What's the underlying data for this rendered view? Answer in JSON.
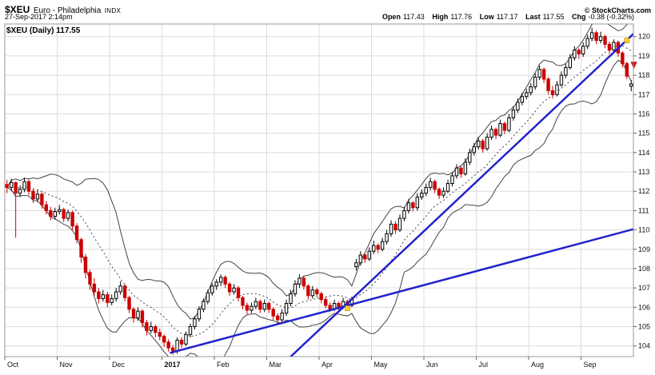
{
  "header": {
    "symbol": "$XEU",
    "name": "Euro - Philadelphia",
    "exchange": "INDX",
    "datetime": "27-Sep-2017 2:14pm",
    "copyright": "© StockCharts.com",
    "quote": {
      "open_label": "Open",
      "open_value": "117.43",
      "high_label": "High",
      "high_value": "117.76",
      "low_label": "Low",
      "low_value": "117.17",
      "last_label": "Last",
      "last_value": "117.55",
      "chg_label": "Chg",
      "chg_value": "-0.38 (-0.32%)"
    }
  },
  "legend_label": "$XEU (Daily) 117.55",
  "chart_data": {
    "type": "candlestick",
    "title": "$XEU (Daily)",
    "last_price": 117.55,
    "ylim": [
      103.45,
      120.65
    ],
    "yticks": [
      104,
      105,
      106,
      107,
      108,
      109,
      110,
      111,
      112,
      113,
      114,
      115,
      116,
      117,
      118,
      119,
      120
    ],
    "months": [
      {
        "label": "Oct",
        "index": 0
      },
      {
        "label": "Nov",
        "index": 12
      },
      {
        "label": "Dec",
        "index": 24
      },
      {
        "label": "2017",
        "index": 36,
        "bold": true
      },
      {
        "label": "Feb",
        "index": 48
      },
      {
        "label": "Mar",
        "index": 60
      },
      {
        "label": "Apr",
        "index": 72
      },
      {
        "label": "May",
        "index": 84
      },
      {
        "label": "Jun",
        "index": 96
      },
      {
        "label": "Jul",
        "index": 108
      },
      {
        "label": "Aug",
        "index": 120
      },
      {
        "label": "Sep",
        "index": 132
      }
    ],
    "bollinger": {
      "period": 12,
      "stdev": 2
    },
    "candles": [
      [
        112.35,
        112.6,
        111.9,
        112.2
      ],
      [
        112.2,
        112.65,
        112.0,
        112.45
      ],
      [
        112.45,
        112.5,
        109.6,
        111.9
      ],
      [
        111.9,
        112.3,
        111.7,
        112.1
      ],
      [
        112.1,
        112.7,
        111.95,
        112.5
      ],
      [
        112.5,
        112.6,
        111.8,
        112.0
      ],
      [
        112.0,
        112.15,
        111.4,
        111.6
      ],
      [
        111.6,
        112.05,
        111.45,
        111.85
      ],
      [
        111.85,
        111.95,
        111.1,
        111.3
      ],
      [
        111.3,
        111.5,
        110.8,
        111.0
      ],
      [
        111.0,
        111.2,
        110.5,
        110.7
      ],
      [
        110.7,
        111.15,
        110.55,
        110.95
      ],
      [
        110.95,
        111.3,
        110.8,
        111.05
      ],
      [
        111.05,
        111.15,
        110.4,
        110.6
      ],
      [
        110.6,
        111.05,
        110.45,
        110.9
      ],
      [
        110.9,
        111.0,
        110.0,
        110.2
      ],
      [
        110.2,
        110.35,
        109.3,
        109.5
      ],
      [
        109.5,
        109.6,
        108.3,
        108.6
      ],
      [
        108.6,
        108.75,
        107.5,
        107.8
      ],
      [
        107.8,
        107.95,
        106.9,
        107.2
      ],
      [
        107.2,
        107.5,
        106.6,
        106.8
      ],
      [
        106.8,
        107.0,
        106.2,
        106.45
      ],
      [
        106.45,
        106.9,
        106.3,
        106.65
      ],
      [
        106.65,
        106.8,
        106.0,
        106.25
      ],
      [
        106.25,
        106.65,
        106.1,
        106.45
      ],
      [
        106.45,
        107.0,
        106.3,
        106.8
      ],
      [
        106.8,
        107.35,
        106.65,
        107.1
      ],
      [
        107.1,
        107.2,
        106.3,
        106.5
      ],
      [
        106.5,
        106.6,
        105.7,
        105.9
      ],
      [
        105.9,
        106.0,
        105.2,
        105.45
      ],
      [
        105.45,
        106.0,
        105.3,
        105.8
      ],
      [
        105.8,
        105.9,
        104.95,
        105.2
      ],
      [
        105.2,
        105.35,
        104.55,
        104.8
      ],
      [
        104.8,
        105.25,
        104.65,
        105.0
      ],
      [
        105.0,
        105.1,
        104.45,
        104.7
      ],
      [
        104.7,
        104.9,
        104.3,
        104.5
      ],
      [
        104.5,
        104.6,
        103.95,
        104.2
      ],
      [
        104.2,
        104.35,
        103.7,
        103.9
      ],
      [
        103.9,
        104.05,
        103.55,
        103.75
      ],
      [
        103.75,
        104.45,
        103.6,
        104.3
      ],
      [
        104.3,
        104.45,
        103.9,
        104.1
      ],
      [
        104.1,
        104.75,
        104.0,
        104.6
      ],
      [
        104.6,
        105.15,
        104.45,
        105.0
      ],
      [
        105.0,
        105.55,
        104.85,
        105.4
      ],
      [
        105.4,
        106.05,
        105.25,
        105.9
      ],
      [
        105.9,
        106.45,
        105.75,
        106.3
      ],
      [
        106.3,
        106.9,
        106.15,
        106.75
      ],
      [
        106.75,
        107.25,
        106.6,
        107.1
      ],
      [
        107.1,
        107.45,
        106.9,
        107.3
      ],
      [
        107.3,
        107.7,
        107.1,
        107.55
      ],
      [
        107.55,
        107.65,
        107.0,
        107.2
      ],
      [
        107.2,
        107.3,
        106.6,
        106.8
      ],
      [
        106.8,
        107.2,
        106.65,
        107.0
      ],
      [
        107.0,
        107.1,
        106.3,
        106.5
      ],
      [
        106.5,
        106.6,
        105.9,
        106.1
      ],
      [
        106.1,
        106.25,
        105.65,
        105.85
      ],
      [
        105.85,
        106.25,
        105.7,
        106.05
      ],
      [
        106.05,
        106.5,
        105.9,
        106.3
      ],
      [
        106.3,
        106.4,
        105.7,
        105.9
      ],
      [
        105.9,
        106.4,
        105.75,
        106.2
      ],
      [
        106.2,
        106.3,
        105.7,
        105.9
      ],
      [
        105.9,
        106.0,
        105.35,
        105.55
      ],
      [
        105.55,
        105.7,
        105.15,
        105.35
      ],
      [
        105.35,
        105.9,
        105.2,
        105.7
      ],
      [
        105.7,
        106.4,
        105.55,
        106.2
      ],
      [
        106.2,
        106.9,
        106.05,
        106.7
      ],
      [
        106.7,
        107.4,
        106.55,
        107.2
      ],
      [
        107.2,
        107.7,
        107.0,
        107.5
      ],
      [
        107.5,
        107.6,
        106.9,
        107.1
      ],
      [
        107.1,
        107.2,
        106.4,
        106.6
      ],
      [
        106.6,
        107.1,
        106.45,
        106.9
      ],
      [
        106.9,
        107.0,
        106.5,
        106.7
      ],
      [
        106.7,
        106.8,
        106.2,
        106.4
      ],
      [
        106.4,
        106.55,
        105.95,
        106.1
      ],
      [
        106.1,
        106.25,
        105.75,
        105.9
      ],
      [
        105.9,
        106.4,
        105.8,
        106.2
      ],
      [
        106.2,
        106.3,
        105.85,
        106.0
      ],
      [
        106.0,
        106.5,
        105.9,
        106.3
      ],
      [
        106.3,
        106.4,
        105.95,
        106.1
      ],
      [
        106.1,
        106.55,
        106.0,
        106.4
      ],
      [
        108.1,
        108.5,
        107.9,
        108.3
      ],
      [
        108.3,
        108.9,
        108.15,
        108.7
      ],
      [
        108.7,
        108.8,
        108.3,
        108.5
      ],
      [
        108.5,
        109.1,
        108.4,
        108.9
      ],
      [
        108.9,
        109.45,
        108.75,
        109.2
      ],
      [
        109.2,
        109.3,
        108.8,
        109.0
      ],
      [
        109.0,
        109.6,
        108.9,
        109.4
      ],
      [
        109.4,
        110.0,
        109.25,
        109.8
      ],
      [
        109.8,
        110.5,
        109.65,
        110.3
      ],
      [
        110.3,
        110.45,
        109.8,
        110.0
      ],
      [
        110.0,
        110.8,
        109.9,
        110.6
      ],
      [
        110.6,
        111.2,
        110.45,
        111.0
      ],
      [
        111.0,
        111.6,
        110.85,
        111.4
      ],
      [
        111.4,
        111.5,
        110.95,
        111.15
      ],
      [
        111.15,
        111.9,
        111.0,
        111.7
      ],
      [
        111.7,
        112.1,
        111.55,
        111.9
      ],
      [
        111.9,
        112.4,
        111.75,
        112.2
      ],
      [
        112.2,
        112.7,
        112.05,
        112.5
      ],
      [
        112.5,
        112.6,
        111.9,
        112.1
      ],
      [
        112.1,
        112.2,
        111.6,
        111.8
      ],
      [
        111.8,
        112.2,
        111.65,
        112.0
      ],
      [
        112.0,
        112.6,
        111.9,
        112.4
      ],
      [
        112.4,
        113.0,
        112.25,
        112.8
      ],
      [
        112.8,
        113.4,
        112.65,
        113.2
      ],
      [
        113.2,
        113.3,
        112.7,
        112.9
      ],
      [
        112.9,
        113.7,
        112.8,
        113.5
      ],
      [
        113.5,
        114.2,
        113.35,
        114.0
      ],
      [
        114.0,
        114.5,
        113.85,
        114.3
      ],
      [
        114.3,
        114.8,
        114.15,
        114.6
      ],
      [
        114.6,
        114.7,
        114.0,
        114.2
      ],
      [
        114.2,
        115.0,
        114.1,
        114.8
      ],
      [
        114.8,
        115.4,
        114.65,
        115.2
      ],
      [
        115.2,
        115.3,
        114.7,
        114.9
      ],
      [
        114.9,
        115.7,
        114.8,
        115.5
      ],
      [
        115.5,
        115.6,
        114.95,
        115.15
      ],
      [
        115.15,
        116.0,
        115.05,
        115.8
      ],
      [
        115.8,
        116.4,
        115.65,
        116.2
      ],
      [
        116.2,
        116.8,
        116.05,
        116.6
      ],
      [
        116.6,
        117.1,
        116.45,
        116.9
      ],
      [
        116.9,
        117.3,
        116.75,
        117.1
      ],
      [
        117.1,
        117.6,
        116.95,
        117.4
      ],
      [
        117.4,
        118.1,
        117.25,
        117.9
      ],
      [
        117.9,
        118.5,
        117.75,
        118.3
      ],
      [
        118.3,
        118.4,
        117.6,
        117.8
      ],
      [
        117.8,
        117.9,
        117.0,
        117.2
      ],
      [
        117.2,
        117.45,
        116.8,
        117.0
      ],
      [
        117.0,
        117.7,
        116.9,
        117.5
      ],
      [
        117.5,
        118.2,
        117.4,
        118.0
      ],
      [
        118.0,
        118.6,
        117.85,
        118.4
      ],
      [
        118.4,
        119.1,
        118.3,
        118.9
      ],
      [
        118.9,
        119.5,
        118.75,
        119.3
      ],
      [
        119.3,
        119.4,
        118.85,
        119.1
      ],
      [
        119.1,
        119.7,
        118.95,
        119.5
      ],
      [
        119.5,
        120.1,
        119.35,
        119.9
      ],
      [
        119.9,
        120.45,
        119.75,
        120.2
      ],
      [
        120.2,
        120.3,
        119.6,
        119.8
      ],
      [
        119.8,
        120.25,
        119.65,
        120.0
      ],
      [
        120.0,
        120.1,
        119.4,
        119.6
      ],
      [
        119.6,
        119.75,
        119.1,
        119.3
      ],
      [
        119.3,
        119.85,
        119.2,
        119.7
      ],
      [
        119.7,
        119.8,
        118.95,
        119.15
      ],
      [
        119.15,
        119.25,
        118.4,
        118.6
      ],
      [
        118.6,
        118.7,
        117.8,
        117.95
      ],
      [
        117.43,
        117.76,
        117.17,
        117.55
      ]
    ],
    "trendlines": [
      {
        "from": [
          37.5,
          103.65
        ],
        "to": [
          144.5,
          110.1
        ],
        "color": "#2222cc",
        "width": 2.5
      },
      {
        "from": [
          65.0,
          103.45
        ],
        "to": [
          144.5,
          120.35
        ],
        "color": "#2222cc",
        "width": 2.5
      }
    ],
    "annotations": [
      {
        "type": "square",
        "at": [
          78,
          105.95
        ],
        "color": "#ffcc33"
      },
      {
        "type": "square",
        "at": [
          142,
          119.8
        ],
        "color": "#ffcc33"
      },
      {
        "type": "arrow-down",
        "at": [
          143.6,
          118.45
        ],
        "color": "#cc0000"
      }
    ],
    "colors": {
      "up": "#000000",
      "down": "#cc0000",
      "band": "#444444",
      "trend": "#2222cc",
      "grid": "#dcdcdc",
      "border": "#999999",
      "text": "#111111"
    }
  }
}
